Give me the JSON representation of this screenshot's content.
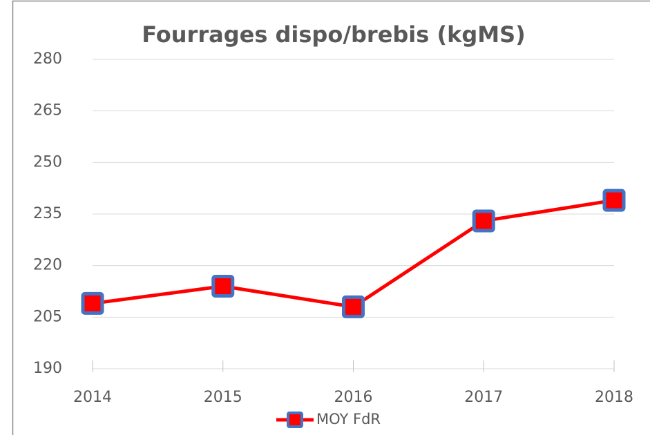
{
  "chart_data": {
    "type": "line",
    "title": "Fourrages dispo/brebis (kgMS)",
    "categories": [
      "2014",
      "2015",
      "2016",
      "2017",
      "2018"
    ],
    "series": [
      {
        "name": "MOY FdR",
        "color": "#ff0000",
        "marker_edge_color": "#4472c4",
        "values": [
          209,
          214,
          208,
          233,
          239
        ]
      }
    ],
    "ylim": [
      190,
      280
    ],
    "yticks": [
      190,
      205,
      220,
      235,
      250,
      265,
      280
    ],
    "grid": true,
    "legend": "bottom"
  }
}
